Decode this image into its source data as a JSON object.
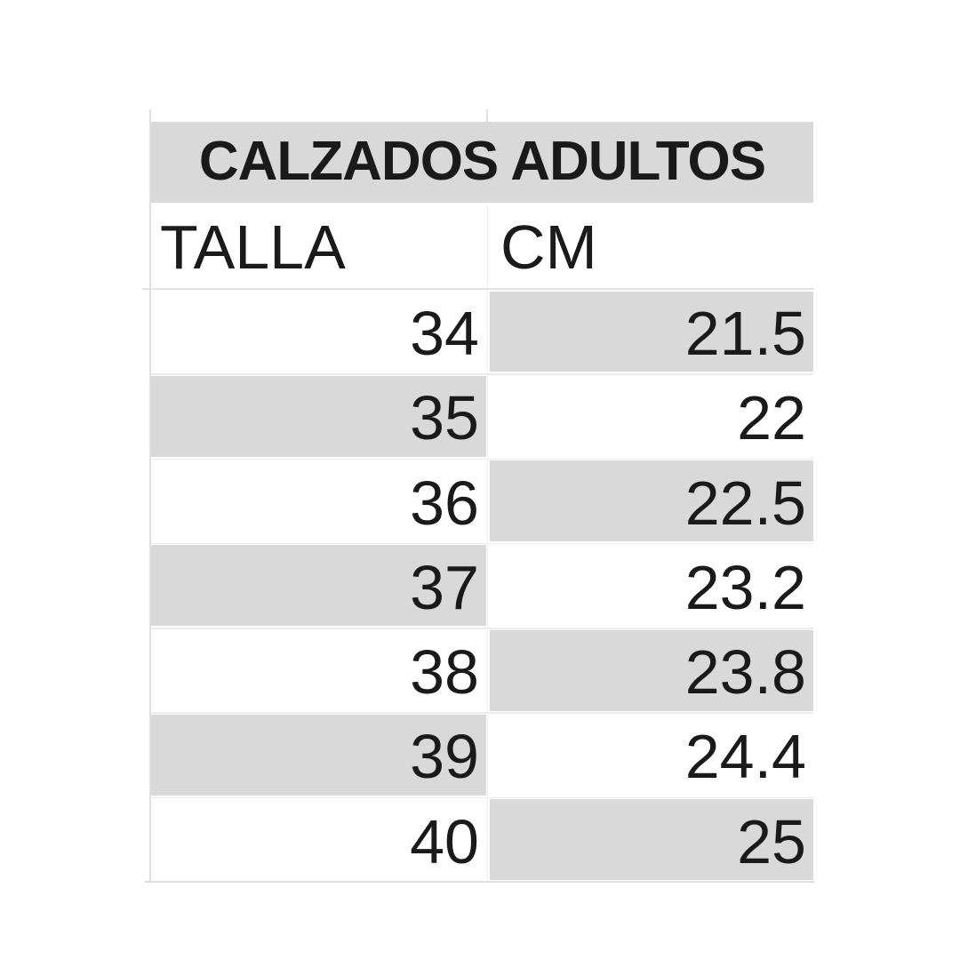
{
  "chart_data": {
    "type": "table",
    "title": "CALZADOS ADULTOS",
    "columns": [
      "TALLA",
      "CM"
    ],
    "rows": [
      [
        "34",
        "21.5"
      ],
      [
        "35",
        "22"
      ],
      [
        "36",
        "22.5"
      ],
      [
        "37",
        "23.2"
      ],
      [
        "38",
        "23.8"
      ],
      [
        "39",
        "24.4"
      ],
      [
        "40",
        "25"
      ]
    ]
  },
  "style": {
    "fill_gray": "#d9d9d9",
    "fill_white": "#ffffff",
    "text_color": "#1a1a1a",
    "gridline_color": "#e0e0e0"
  }
}
